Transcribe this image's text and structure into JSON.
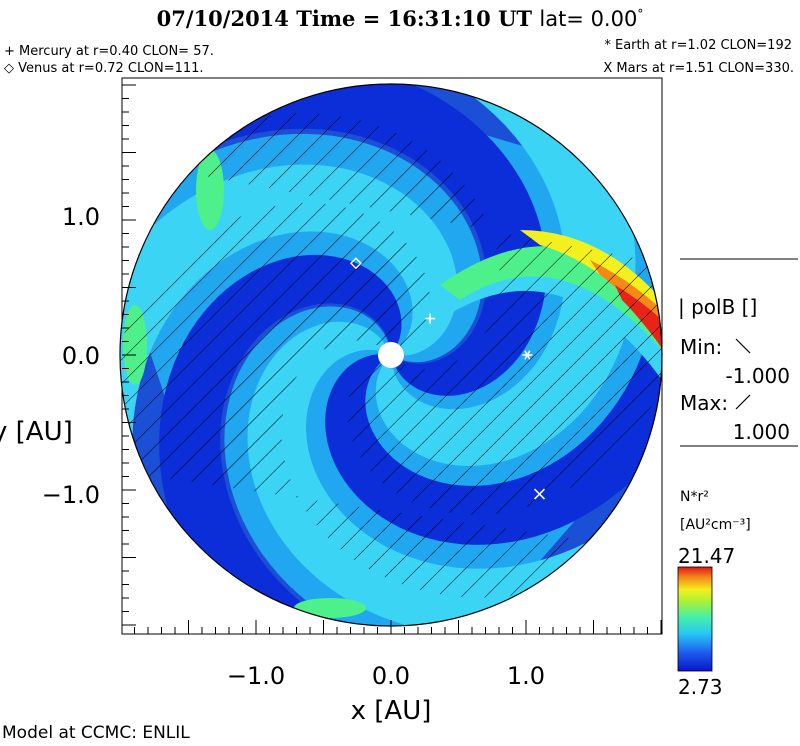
{
  "header": {
    "title": "07/10/2014 Time = 16:31:10 UT",
    "lat_label": "lat= 0.00",
    "lat_degree": "°"
  },
  "planets_info": {
    "mercury": "+ Mercury at r=0.40 CLON= 57.",
    "venus": "◇ Venus at r=0.72 CLON=111.",
    "earth": "* Earth at  r=1.02 CLON=192",
    "mars": "X Mars at r=1.51 CLON=330."
  },
  "legend": {
    "polarity_title": "| polB []",
    "min_label": "Min:",
    "min_value": "-1.000",
    "max_label": "Max:",
    "max_value": "1.000",
    "colorbar_title": "N*r²",
    "colorbar_unit": "[AU²cm⁻³]",
    "colorbar_max": "21.47",
    "colorbar_min": "2.73"
  },
  "footer": {
    "credit": "Model at CCMC: ENLIL"
  },
  "chart_data": {
    "type": "heatmap",
    "xlabel": "x [AU]",
    "ylabel": "y [AU]",
    "xlim": [
      -2,
      2
    ],
    "ylim": [
      -2,
      2
    ],
    "x_ticks": [
      -1.0,
      0.0,
      1.0
    ],
    "x_tick_labels": [
      "−1.0",
      "0.0",
      "1.0"
    ],
    "y_ticks": [
      1.0,
      0.0,
      -1.0
    ],
    "y_tick_labels": [
      "1.0",
      "0.0",
      "−1.0"
    ],
    "colorscale_min": 2.73,
    "colorscale_max": 21.47,
    "polarity_min": -1.0,
    "polarity_max": 1.0,
    "colors": {
      "outer": "#1a4fd6",
      "dark": "#0c2ed8",
      "mid": "#21a7ef",
      "cyan": "#3cd4f4",
      "green": "#4ef08c",
      "yellow": "#f3f01f",
      "orange": "#f38a18",
      "red": "#e8241a"
    },
    "planets": [
      {
        "name": "Mercury",
        "symbol": "+",
        "x": 0.29,
        "y": 0.27
      },
      {
        "name": "Venus",
        "symbol": "◇",
        "x": -0.26,
        "y": 0.68
      },
      {
        "name": "Earth",
        "symbol": "*",
        "x": 1.01,
        "y": 0.0
      },
      {
        "name": "Mars",
        "symbol": "X",
        "x": 1.1,
        "y": -1.03
      }
    ]
  }
}
